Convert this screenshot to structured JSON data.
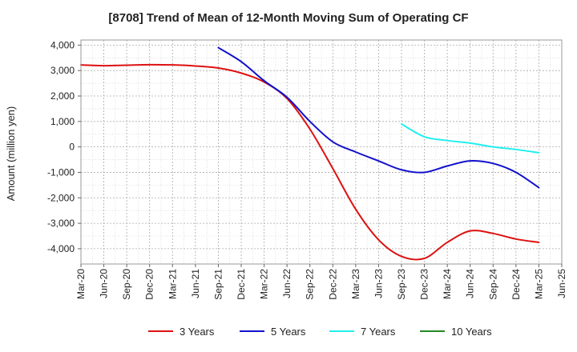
{
  "chart_data": {
    "type": "line",
    "title": "[8708]  Trend of Mean of 12-Month Moving Sum of Operating CF",
    "xlabel": "",
    "ylabel": "Amount (million yen)",
    "ylim": [
      -4600,
      4200
    ],
    "yticks": [
      4000,
      3000,
      2000,
      1000,
      0,
      -1000,
      -2000,
      -3000,
      -4000
    ],
    "ytick_labels": [
      "4,000",
      "3,000",
      "2,000",
      "1,000",
      "0",
      "-1,000",
      "-2,000",
      "-3,000",
      "-4,000"
    ],
    "categories": [
      "Mar-20",
      "Jun-20",
      "Sep-20",
      "Dec-20",
      "Mar-21",
      "Jun-21",
      "Sep-21",
      "Dec-21",
      "Mar-22",
      "Jun-22",
      "Sep-22",
      "Dec-22",
      "Mar-23",
      "Jun-23",
      "Sep-23",
      "Dec-23",
      "Mar-24",
      "Jun-24",
      "Sep-24",
      "Dec-24",
      "Mar-25",
      "Jun-25"
    ],
    "grid": true,
    "legend_position": "bottom",
    "series": [
      {
        "name": "3 Years",
        "color": "#dd1111",
        "values": [
          3220,
          3190,
          3210,
          3230,
          3220,
          3180,
          3100,
          2900,
          2550,
          1900,
          700,
          -850,
          -2450,
          -3650,
          -4300,
          -4380,
          -3750,
          -3300,
          -3400,
          -3620,
          -3750,
          null
        ]
      },
      {
        "name": "5 Years",
        "color": "#1111cc",
        "values": [
          null,
          null,
          null,
          null,
          null,
          null,
          3900,
          3350,
          2600,
          1950,
          1000,
          200,
          -200,
          -550,
          -900,
          -1000,
          -750,
          -550,
          -650,
          -1000,
          -1600,
          null
        ]
      },
      {
        "name": "7 Years",
        "color": "#22eeee",
        "values": [
          null,
          null,
          null,
          null,
          null,
          null,
          null,
          null,
          null,
          null,
          null,
          null,
          null,
          null,
          900,
          400,
          250,
          150,
          0,
          -100,
          -230,
          null
        ]
      },
      {
        "name": "10 Years",
        "color": "#228822",
        "values": [
          null,
          null,
          null,
          null,
          null,
          null,
          null,
          null,
          null,
          null,
          null,
          null,
          null,
          null,
          null,
          null,
          null,
          null,
          null,
          null,
          null,
          null
        ]
      }
    ]
  }
}
